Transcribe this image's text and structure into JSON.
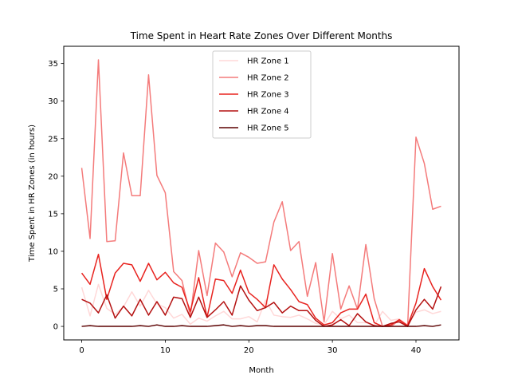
{
  "chart_data": {
    "type": "line",
    "title": "Time Spent in Heart Rate Zones Over Different Months",
    "xlabel": "Month",
    "ylabel": "Time Spent in HR Zones (in hours)",
    "xlim": [
      -2.15,
      45.15
    ],
    "ylim": [
      -1.8,
      37.3
    ],
    "xticks": [
      0,
      10,
      20,
      30,
      40
    ],
    "yticks": [
      0,
      5,
      10,
      15,
      20,
      25,
      30,
      35
    ],
    "grid": false,
    "legend": "top-center",
    "x": [
      0,
      1,
      2,
      3,
      4,
      5,
      6,
      7,
      8,
      9,
      10,
      11,
      12,
      13,
      14,
      15,
      16,
      17,
      18,
      19,
      20,
      21,
      22,
      23,
      24,
      25,
      26,
      27,
      28,
      29,
      30,
      31,
      32,
      33,
      34,
      35,
      36,
      37,
      38,
      39,
      40,
      41,
      42,
      43
    ],
    "series": [
      {
        "name": "HR Zone 1",
        "color": "#ffd8d8",
        "values": [
          5.2,
          1.4,
          5.6,
          2.4,
          1.6,
          2.6,
          4.6,
          2.7,
          4.8,
          3.0,
          2.5,
          1.1,
          1.6,
          0.3,
          1.1,
          0.7,
          1.4,
          2.0,
          1.0,
          1.0,
          1.3,
          0.6,
          3.5,
          1.5,
          1.3,
          1.2,
          1.5,
          1.0,
          0.4,
          0.2,
          2.0,
          1.0,
          1.5,
          0.5,
          0.5,
          0.1,
          2.0,
          0.8,
          1.0,
          0.2,
          1.9,
          2.2,
          1.7,
          2.0
        ]
      },
      {
        "name": "HR Zone 2",
        "color": "#f47b7b",
        "values": [
          21.1,
          11.7,
          35.5,
          11.3,
          11.4,
          23.1,
          17.4,
          17.4,
          33.5,
          20.1,
          17.8,
          7.3,
          6.1,
          1.4,
          10.1,
          4.1,
          11.1,
          9.9,
          6.6,
          9.8,
          9.2,
          8.4,
          8.6,
          13.9,
          16.6,
          10.1,
          11.3,
          4.0,
          8.5,
          0.6,
          9.7,
          2.3,
          5.4,
          2.3,
          10.9,
          3.7,
          0.0,
          0.0,
          0.8,
          0.0,
          25.2,
          21.7,
          15.6,
          16.0
        ]
      },
      {
        "name": "HR Zone 3",
        "color": "#e8231f",
        "values": [
          7.1,
          5.6,
          9.6,
          3.6,
          7.1,
          8.4,
          8.2,
          6.0,
          8.4,
          6.2,
          7.2,
          5.8,
          5.2,
          2.0,
          6.5,
          1.2,
          6.3,
          6.1,
          4.4,
          7.5,
          4.5,
          3.6,
          2.5,
          8.2,
          6.3,
          4.9,
          3.3,
          2.9,
          1.1,
          0.2,
          0.5,
          1.8,
          2.3,
          2.3,
          4.3,
          0.5,
          0.0,
          0.2,
          0.9,
          0.1,
          3.1,
          7.7,
          5.3,
          3.5
        ]
      },
      {
        "name": "HR Zone 4",
        "color": "#b41111",
        "values": [
          3.6,
          3.1,
          1.8,
          4.2,
          1.1,
          2.7,
          1.4,
          3.6,
          1.5,
          3.3,
          1.5,
          3.9,
          3.7,
          1.2,
          3.9,
          1.2,
          2.2,
          3.3,
          1.5,
          5.4,
          3.5,
          2.1,
          2.5,
          3.2,
          1.8,
          2.7,
          2.1,
          2.1,
          0.8,
          0.0,
          0.2,
          0.9,
          0.1,
          1.7,
          0.6,
          0.1,
          0.0,
          0.4,
          0.6,
          0.0,
          2.2,
          3.6,
          2.3,
          5.3
        ]
      },
      {
        "name": "HR Zone 5",
        "color": "#5b0000",
        "values": [
          0.0,
          0.1,
          0.0,
          0.0,
          0.0,
          0.0,
          0.0,
          0.1,
          0.0,
          0.2,
          0.0,
          0.0,
          0.1,
          0.0,
          0.0,
          0.0,
          0.1,
          0.2,
          0.0,
          0.1,
          0.0,
          0.1,
          0.1,
          0.0,
          0.0,
          0.0,
          0.0,
          0.0,
          0.0,
          0.0,
          0.0,
          0.0,
          0.0,
          0.0,
          0.0,
          0.0,
          0.0,
          0.0,
          0.0,
          0.0,
          0.0,
          0.1,
          0.0,
          0.2
        ]
      }
    ]
  }
}
